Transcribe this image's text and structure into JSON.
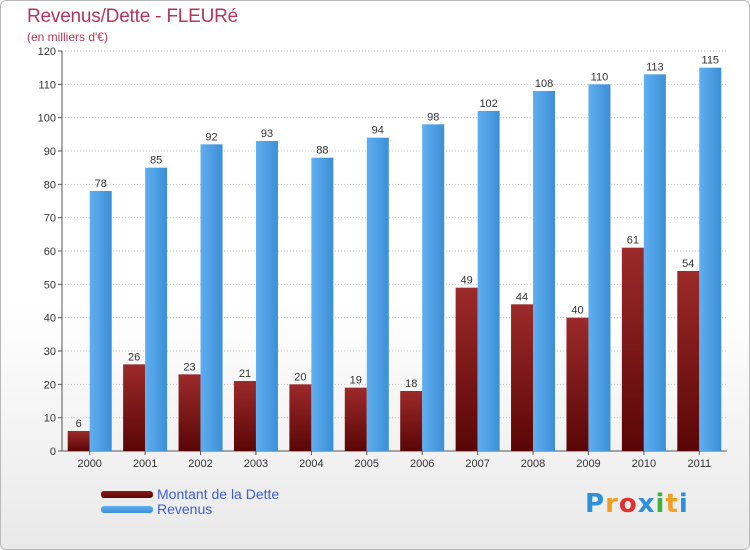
{
  "header": {
    "title": "Revenus/Dette - FLEURé",
    "subtitle": "(en milliers d'€)"
  },
  "colors": {
    "dette": "#8b1a1a",
    "revenus": "#4f9fe0",
    "title": "#b5365a",
    "legend_text": "#3f5fd0"
  },
  "legend": {
    "items": [
      {
        "label": "Montant de la Dette",
        "color": "#8b1a1a"
      },
      {
        "label": "Revenus",
        "color": "#4f9fe0"
      }
    ]
  },
  "logo": {
    "letters": [
      "P",
      "r",
      "o",
      "x",
      "i",
      "t",
      "i"
    ],
    "colors": [
      "#2f8fd8",
      "#f0a020",
      "#e03030",
      "#2f8fd8",
      "#40b040",
      "#f0a020",
      "#2f8fd8"
    ]
  },
  "chart_data": {
    "type": "bar",
    "categories": [
      "2000",
      "2001",
      "2002",
      "2003",
      "2004",
      "2005",
      "2006",
      "2007",
      "2008",
      "2009",
      "2010",
      "2011"
    ],
    "series": [
      {
        "name": "Montant de la Dette",
        "values": [
          6,
          26,
          23,
          21,
          20,
          19,
          18,
          49,
          44,
          40,
          61,
          54
        ]
      },
      {
        "name": "Revenus",
        "values": [
          78,
          85,
          92,
          93,
          88,
          94,
          98,
          102,
          108,
          110,
          113,
          115
        ]
      }
    ],
    "ylim": [
      0,
      120
    ],
    "yticks": [
      0,
      10,
      20,
      30,
      40,
      50,
      60,
      70,
      80,
      90,
      100,
      110,
      120
    ],
    "grid": true,
    "legend_position": "bottom-left"
  }
}
